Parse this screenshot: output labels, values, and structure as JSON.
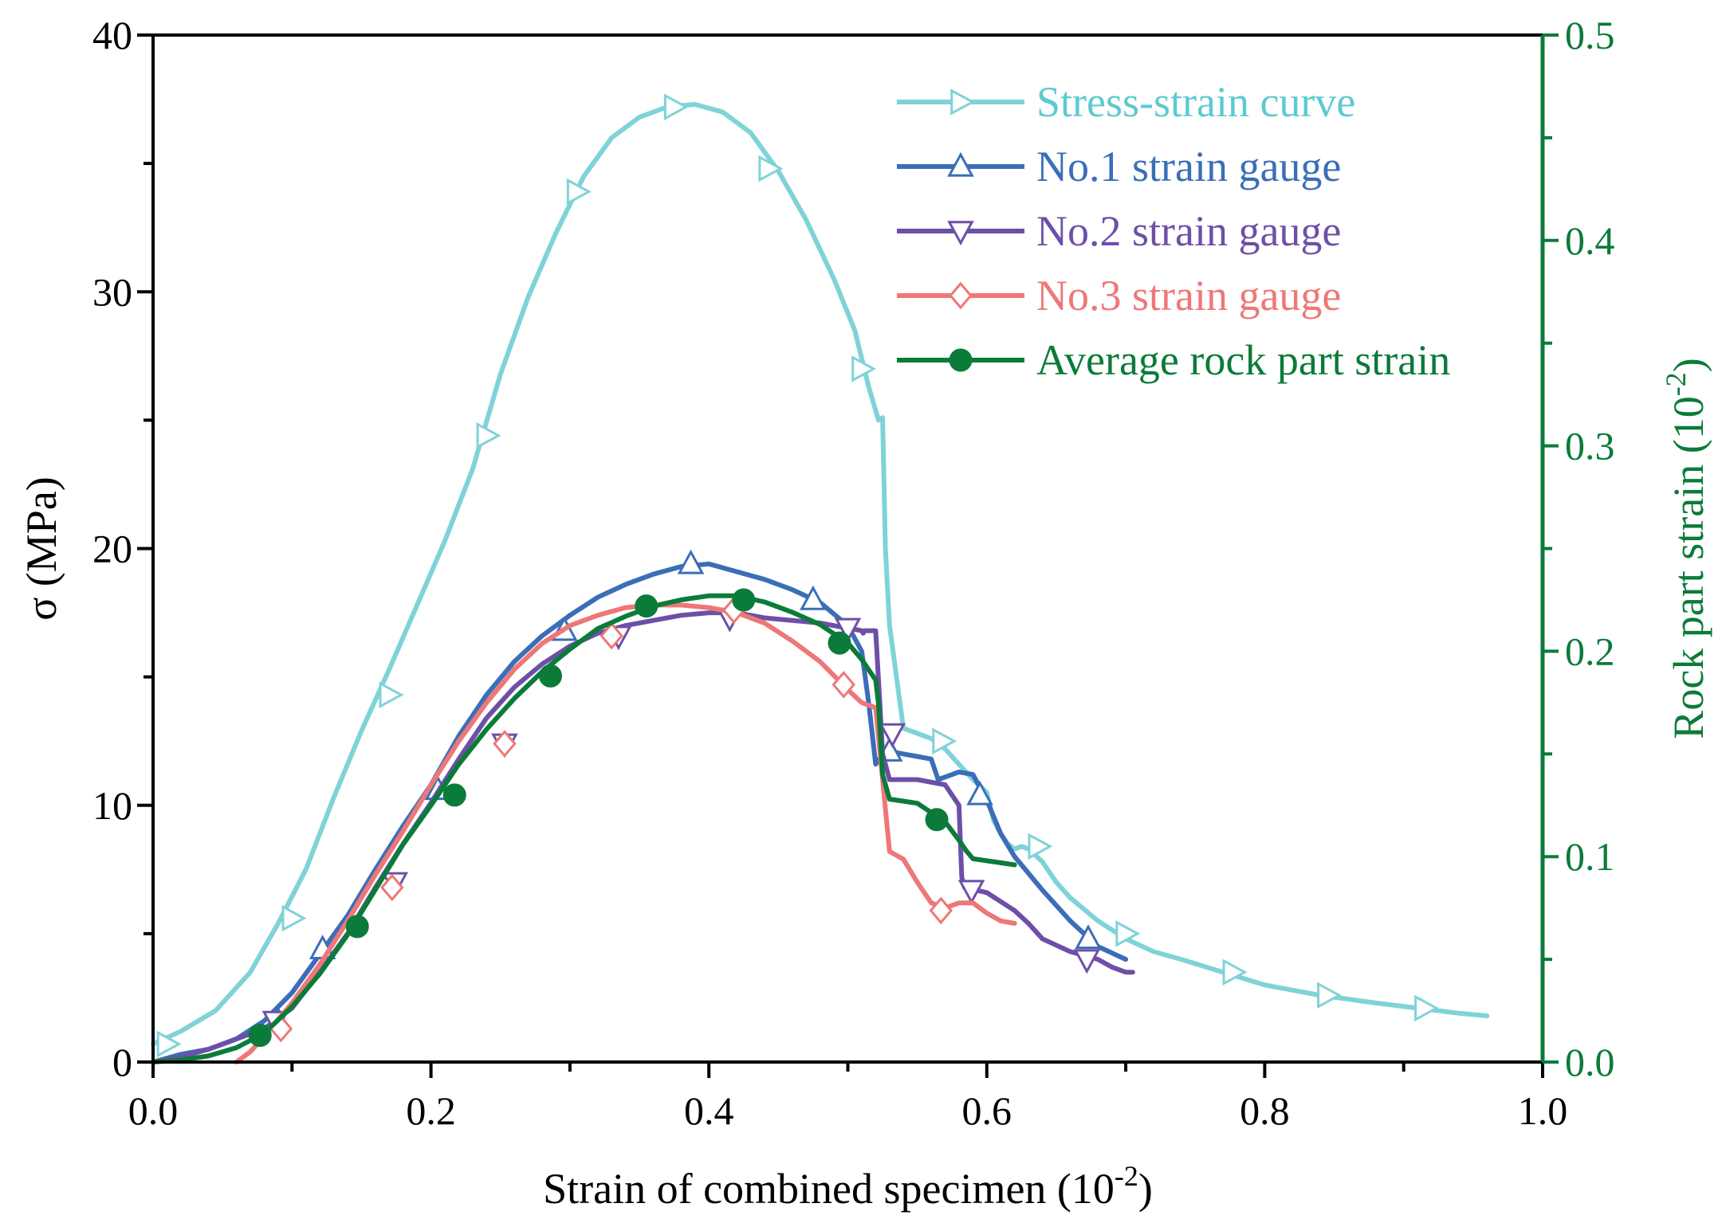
{
  "chart_data": {
    "type": "line",
    "xlabel": "Strain of combined specimen (10",
    "xlabel_sup": "-2",
    "xlabel_close": ")",
    "ylabel": "σ (MPa)",
    "y2label": "Rock part strain (10",
    "y2label_sup": "-2",
    "y2label_close": ")",
    "xlim": [
      0,
      1.0
    ],
    "ylim": [
      0,
      40
    ],
    "y2lim": [
      0,
      0.5
    ],
    "x_ticks": [
      0.0,
      0.2,
      0.4,
      0.6,
      0.8,
      1.0
    ],
    "x_tick_labels": [
      "0.0",
      "0.2",
      "0.4",
      "0.6",
      "0.8",
      "1.0"
    ],
    "y_ticks": [
      0,
      10,
      20,
      30,
      40
    ],
    "y_tick_labels": [
      "0",
      "10",
      "20",
      "30",
      "40"
    ],
    "y2_ticks": [
      0.0,
      0.1,
      0.2,
      0.3,
      0.4,
      0.5
    ],
    "y2_tick_labels": [
      "0.0",
      "0.1",
      "0.2",
      "0.3",
      "0.4",
      "0.5"
    ],
    "legend_position": "top-right",
    "y2_color": "#0b7b39",
    "series": [
      {
        "name": "Stress-strain curve",
        "axis": "left",
        "color": "#7fd3d8",
        "text_color": "#5ccad2",
        "marker": "triangle-right",
        "marker_filled": false,
        "x": [
          0.0,
          0.02,
          0.045,
          0.07,
          0.09,
          0.11,
          0.13,
          0.15,
          0.17,
          0.19,
          0.21,
          0.23,
          0.25,
          0.27,
          0.29,
          0.31,
          0.33,
          0.35,
          0.37,
          0.39,
          0.41,
          0.43,
          0.45,
          0.47,
          0.49,
          0.505,
          0.515,
          0.521,
          0.522,
          0.525,
          0.527,
          0.53,
          0.535,
          0.54,
          0.545,
          0.55,
          0.56,
          0.57,
          0.58,
          0.59,
          0.6,
          0.605,
          0.61,
          0.615,
          0.62,
          0.625,
          0.63,
          0.64,
          0.65,
          0.66,
          0.68,
          0.7,
          0.72,
          0.74,
          0.77,
          0.8,
          0.84,
          0.88,
          0.91,
          0.94,
          0.96
        ],
        "y": [
          0.7,
          1.2,
          2.0,
          3.5,
          5.4,
          7.5,
          10.3,
          12.9,
          15.3,
          17.8,
          20.3,
          23.1,
          26.8,
          29.8,
          32.3,
          34.5,
          36.0,
          36.8,
          37.2,
          37.3,
          37.0,
          36.2,
          34.7,
          32.8,
          30.5,
          28.5,
          26.3,
          25.2,
          25.0,
          25.1,
          20.0,
          17.0,
          15.0,
          13.0,
          12.9,
          12.8,
          12.6,
          12.2,
          11.6,
          11.0,
          10.5,
          9.4,
          8.9,
          8.5,
          8.3,
          8.4,
          8.3,
          7.8,
          7.0,
          6.4,
          5.5,
          4.8,
          4.3,
          4.0,
          3.5,
          3.0,
          2.6,
          2.3,
          2.1,
          1.9,
          1.8
        ],
        "markers_x": [
          0.01,
          0.1,
          0.17,
          0.24,
          0.305,
          0.375,
          0.443,
          0.51,
          0.568,
          0.637,
          0.7,
          0.777,
          0.845,
          0.915
        ],
        "markers_y": [
          0.7,
          5.6,
          14.3,
          24.4,
          33.9,
          37.2,
          34.8,
          27.0,
          12.5,
          8.4,
          5.0,
          3.5,
          2.6,
          2.1
        ]
      },
      {
        "name": "No.1 strain gauge",
        "axis": "left",
        "color": "#3a6eb8",
        "text_color": "#3a6eb8",
        "marker": "triangle-up",
        "marker_filled": false,
        "x": [
          0.0,
          0.02,
          0.04,
          0.06,
          0.08,
          0.1,
          0.12,
          0.14,
          0.16,
          0.18,
          0.2,
          0.22,
          0.24,
          0.26,
          0.28,
          0.3,
          0.32,
          0.34,
          0.36,
          0.38,
          0.4,
          0.42,
          0.44,
          0.46,
          0.48,
          0.5,
          0.51,
          0.515,
          0.52,
          0.525,
          0.53,
          0.54,
          0.55,
          0.56,
          0.565,
          0.57,
          0.58,
          0.59,
          0.6,
          0.61,
          0.62,
          0.64,
          0.66,
          0.68,
          0.7
        ],
        "y": [
          0.0,
          0.3,
          0.5,
          0.9,
          1.6,
          2.7,
          4.2,
          5.7,
          7.5,
          9.2,
          10.8,
          12.7,
          14.3,
          15.6,
          16.6,
          17.4,
          18.1,
          18.6,
          19.0,
          19.3,
          19.4,
          19.1,
          18.8,
          18.4,
          17.9,
          17.0,
          16.0,
          14.0,
          11.6,
          12.0,
          12.1,
          12.0,
          11.9,
          11.8,
          11.0,
          11.1,
          11.3,
          11.2,
          10.2,
          8.9,
          8.0,
          6.7,
          5.5,
          4.5,
          4.0
        ],
        "markers_x": [
          0.09,
          0.122,
          0.205,
          0.296,
          0.387,
          0.475,
          0.53,
          0.595,
          0.673
        ],
        "markers_y": [
          1.6,
          4.4,
          10.6,
          16.8,
          19.4,
          18.0,
          12.1,
          10.4,
          4.8
        ]
      },
      {
        "name": "No.2 strain gauge",
        "axis": "left",
        "color": "#6e4fa8",
        "text_color": "#6e4fa8",
        "marker": "triangle-down",
        "marker_filled": false,
        "x": [
          0.0,
          0.02,
          0.04,
          0.06,
          0.08,
          0.1,
          0.12,
          0.14,
          0.16,
          0.18,
          0.2,
          0.22,
          0.24,
          0.26,
          0.28,
          0.3,
          0.32,
          0.34,
          0.36,
          0.38,
          0.4,
          0.42,
          0.44,
          0.46,
          0.48,
          0.5,
          0.51,
          0.511,
          0.512,
          0.52,
          0.523,
          0.525,
          0.53,
          0.535,
          0.55,
          0.57,
          0.58,
          0.582,
          0.584,
          0.6,
          0.62,
          0.63,
          0.64,
          0.66,
          0.68,
          0.69,
          0.7,
          0.705
        ],
        "y": [
          0.0,
          0.2,
          0.5,
          0.9,
          1.3,
          2.1,
          3.5,
          5.0,
          6.8,
          8.5,
          10.1,
          11.8,
          13.4,
          14.6,
          15.5,
          16.2,
          16.7,
          17.0,
          17.2,
          17.4,
          17.5,
          17.5,
          17.3,
          17.2,
          17.1,
          16.9,
          16.8,
          16.7,
          16.8,
          16.8,
          14.0,
          12.0,
          11.0,
          11.0,
          11.0,
          10.8,
          10.0,
          7.2,
          6.8,
          6.6,
          5.9,
          5.4,
          4.8,
          4.3,
          4.0,
          3.7,
          3.5,
          3.5
        ],
        "markers_x": [
          0.088,
          0.174,
          0.253,
          0.335,
          0.415,
          0.5,
          0.532,
          0.589,
          0.672
        ],
        "markers_y": [
          1.6,
          7.0,
          12.4,
          16.6,
          17.3,
          16.9,
          12.8,
          6.7,
          4.0
        ]
      },
      {
        "name": "No.3 strain gauge",
        "axis": "left",
        "color": "#ee7777",
        "text_color": "#ee7777",
        "marker": "diamond",
        "marker_filled": false,
        "x": [
          0.06,
          0.07,
          0.08,
          0.1,
          0.12,
          0.14,
          0.16,
          0.18,
          0.2,
          0.22,
          0.24,
          0.26,
          0.28,
          0.3,
          0.32,
          0.34,
          0.36,
          0.38,
          0.4,
          0.42,
          0.44,
          0.46,
          0.48,
          0.5,
          0.51,
          0.52,
          0.525,
          0.53,
          0.54,
          0.55,
          0.56,
          0.57,
          0.58,
          0.59,
          0.6,
          0.61,
          0.62
        ],
        "y": [
          0.0,
          0.4,
          1.0,
          2.3,
          3.8,
          5.5,
          7.3,
          9.0,
          10.8,
          12.5,
          14.0,
          15.3,
          16.3,
          17.0,
          17.4,
          17.7,
          17.8,
          17.8,
          17.7,
          17.5,
          17.1,
          16.4,
          15.6,
          14.5,
          14.0,
          13.8,
          11.0,
          8.2,
          7.9,
          7.0,
          6.2,
          6.0,
          6.2,
          6.2,
          5.8,
          5.5,
          5.4
        ],
        "markers_x": [
          0.092,
          0.172,
          0.253,
          0.33,
          0.418,
          0.497,
          0.567
        ],
        "markers_y": [
          1.3,
          6.8,
          12.4,
          16.6,
          17.6,
          14.7,
          5.9
        ]
      },
      {
        "name": "Average rock part strain",
        "axis": "right",
        "color": "#0b7b39",
        "text_color": "#0b7b39",
        "marker": "circle",
        "marker_filled": true,
        "x": [
          0.0,
          0.02,
          0.04,
          0.06,
          0.08,
          0.1,
          0.12,
          0.14,
          0.16,
          0.18,
          0.2,
          0.22,
          0.24,
          0.26,
          0.28,
          0.3,
          0.32,
          0.34,
          0.36,
          0.38,
          0.4,
          0.42,
          0.44,
          0.46,
          0.48,
          0.5,
          0.51,
          0.52,
          0.522,
          0.525,
          0.53,
          0.55,
          0.57,
          0.58,
          0.585,
          0.59,
          0.6,
          0.61,
          0.62
        ],
        "y": [
          0.0,
          0.001,
          0.003,
          0.007,
          0.014,
          0.027,
          0.043,
          0.062,
          0.084,
          0.106,
          0.125,
          0.145,
          0.162,
          0.177,
          0.19,
          0.201,
          0.211,
          0.217,
          0.222,
          0.225,
          0.227,
          0.227,
          0.224,
          0.219,
          0.213,
          0.204,
          0.196,
          0.186,
          0.175,
          0.14,
          0.128,
          0.126,
          0.117,
          0.108,
          0.103,
          0.099,
          0.098,
          0.097,
          0.096
        ],
        "markers_x": [
          0.077,
          0.147,
          0.217,
          0.286,
          0.355,
          0.425,
          0.494,
          0.564
        ],
        "markers_y": [
          0.013,
          0.066,
          0.13,
          0.188,
          0.222,
          0.225,
          0.204,
          0.118
        ]
      }
    ]
  }
}
